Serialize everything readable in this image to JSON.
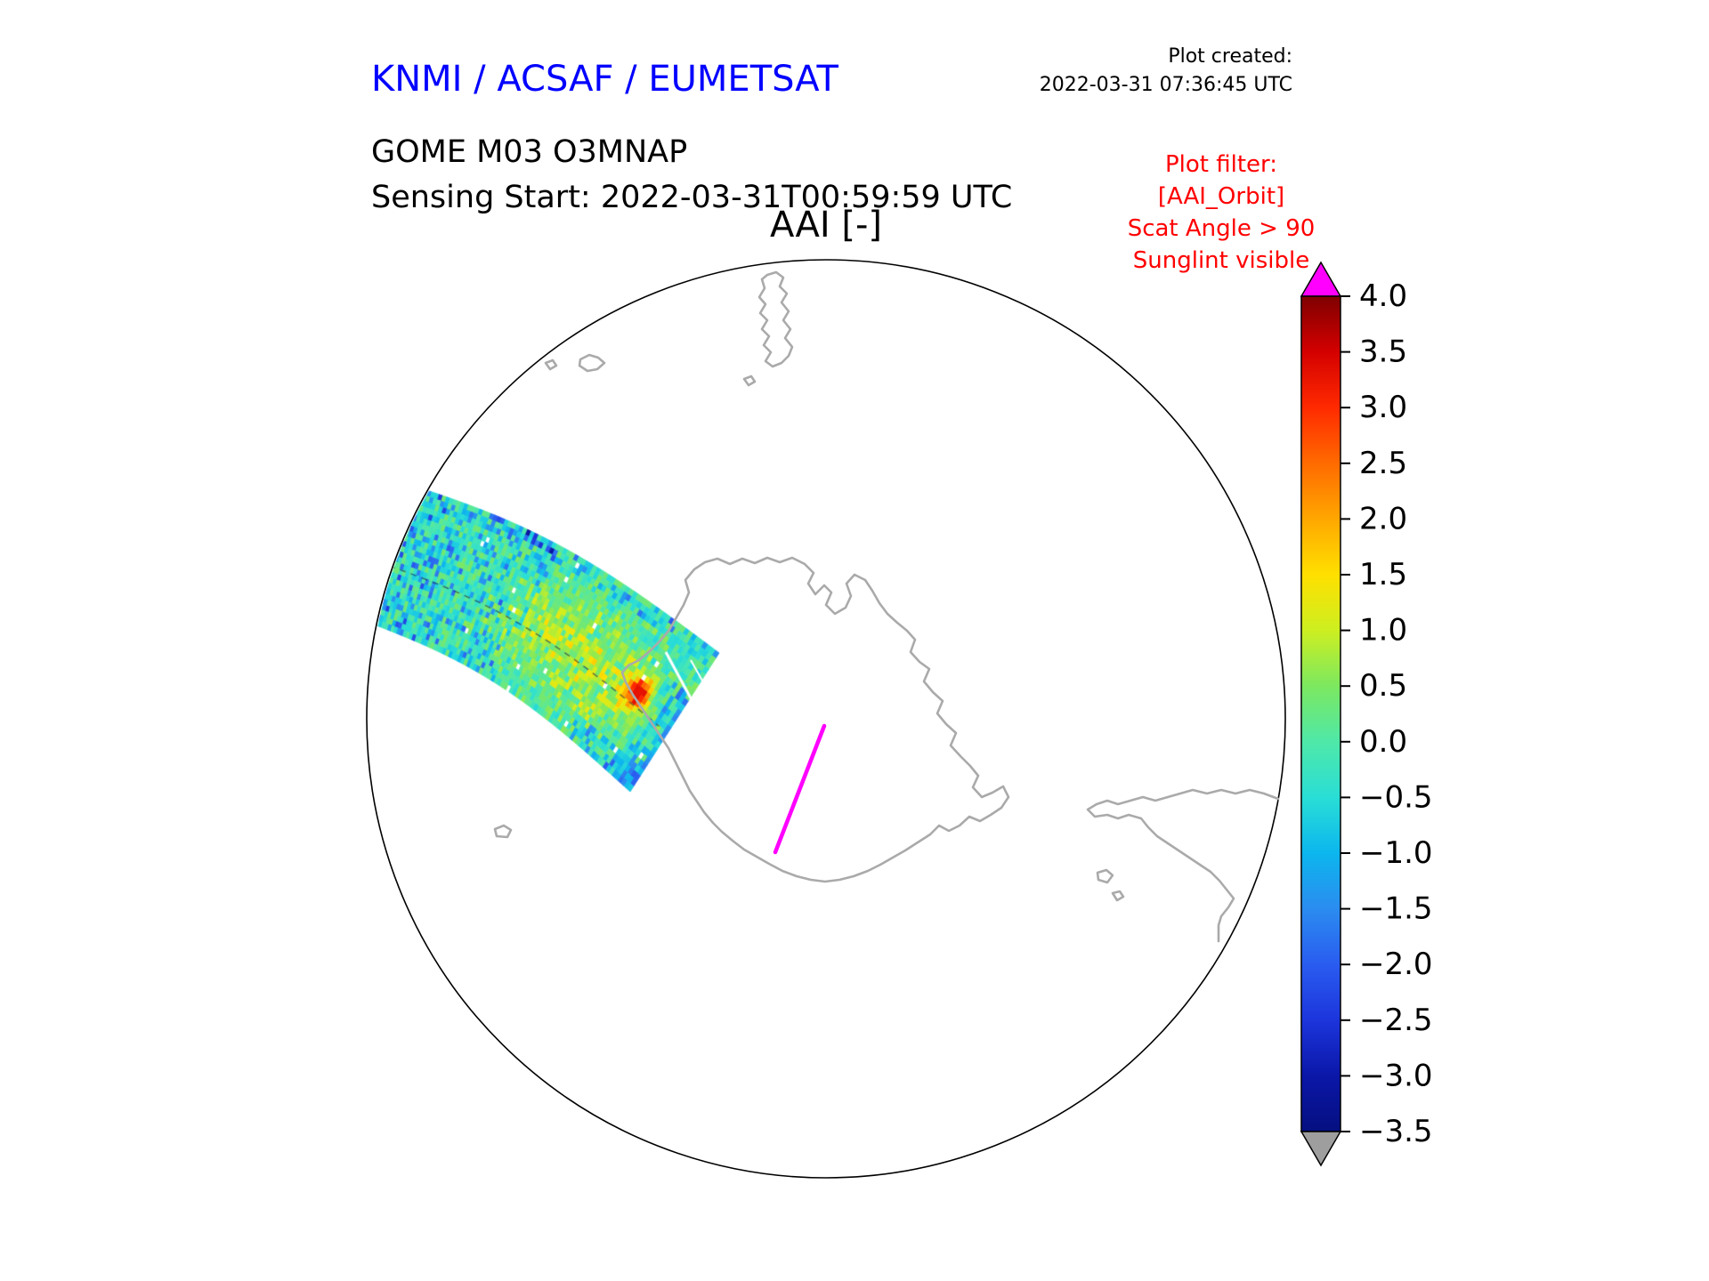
{
  "header": {
    "org_title": "KNMI / ACSAF / EUMETSAT",
    "plot_created_label": "Plot created:",
    "plot_created_value": "2022-03-31 07:36:45 UTC",
    "product_line1": "GOME M03 O3MNAP",
    "product_line2": "Sensing Start: 2022-03-31T00:59:59 UTC",
    "plot_title": "AAI [-]"
  },
  "filter_note": {
    "lines": [
      "Plot filter:",
      "[AAI_Orbit]",
      "Scat Angle > 90",
      "Sunglint visible"
    ]
  },
  "colors": {
    "org_title_blue": "#0000ff",
    "filter_red": "#ff0000",
    "coastline_gray": "#aaaaaa",
    "map_outline_black": "#000000",
    "sunglint_magenta": "#ff00ff",
    "colorbar_over_arrow": "#ff00ff",
    "colorbar_under_arrow": "#9e9e9e"
  },
  "chart_data": {
    "type": "heatmap",
    "title": "AAI [-]",
    "layout_hints": {
      "projection": "south polar stereographic disc",
      "colorbar_position": "right",
      "grid": false
    },
    "colorbar": {
      "vmin": -3.5,
      "vmax": 4.0,
      "tick_step": 0.5,
      "tick_values": [
        4.0,
        3.5,
        3.0,
        2.5,
        2.0,
        1.5,
        1.0,
        0.5,
        0.0,
        -0.5,
        -1.0,
        -1.5,
        -2.0,
        -2.5,
        -3.0,
        -3.5
      ],
      "tick_labels": [
        "4.0",
        "3.5",
        "3.0",
        "2.5",
        "2.0",
        "1.5",
        "1.0",
        "0.5",
        "0.0",
        "−0.5",
        "−1.0",
        "−1.5",
        "−2.0",
        "−2.5",
        "−3.0",
        "−3.5"
      ],
      "over_arrow_color": "#ff00ff",
      "under_arrow_color": "#9e9e9e",
      "colormap_stops": [
        {
          "v": 4.0,
          "c": "#7f0000"
        },
        {
          "v": 3.5,
          "c": "#d40000"
        },
        {
          "v": 3.0,
          "c": "#ff2a00"
        },
        {
          "v": 2.5,
          "c": "#ff6a00"
        },
        {
          "v": 2.0,
          "c": "#ffa700"
        },
        {
          "v": 1.5,
          "c": "#ffe000"
        },
        {
          "v": 1.0,
          "c": "#cdef20"
        },
        {
          "v": 0.5,
          "c": "#7ce860"
        },
        {
          "v": 0.0,
          "c": "#4fe8a8"
        },
        {
          "v": -0.5,
          "c": "#29ded6"
        },
        {
          "v": -1.0,
          "c": "#0cb6ee"
        },
        {
          "v": -1.5,
          "c": "#2b8cf0"
        },
        {
          "v": -2.0,
          "c": "#2a5cf0"
        },
        {
          "v": -2.5,
          "c": "#1c35dc"
        },
        {
          "v": -3.0,
          "c": "#0b17a8"
        },
        {
          "v": -3.5,
          "c": "#050f80"
        }
      ]
    },
    "swath": {
      "visible_value_range": [
        -3.0,
        3.2
      ],
      "dominant_value_range": [
        -1.0,
        1.0
      ],
      "note_features": [
        "cyan-green speckled orbit strip upper-left",
        "yellow patch lower middle",
        "small red hotspot near coastline",
        "dark blue pixels at strip tip",
        "thin white data-gap lines near strip end"
      ]
    },
    "sunglint_line": {
      "color": "#ff00ff"
    }
  }
}
